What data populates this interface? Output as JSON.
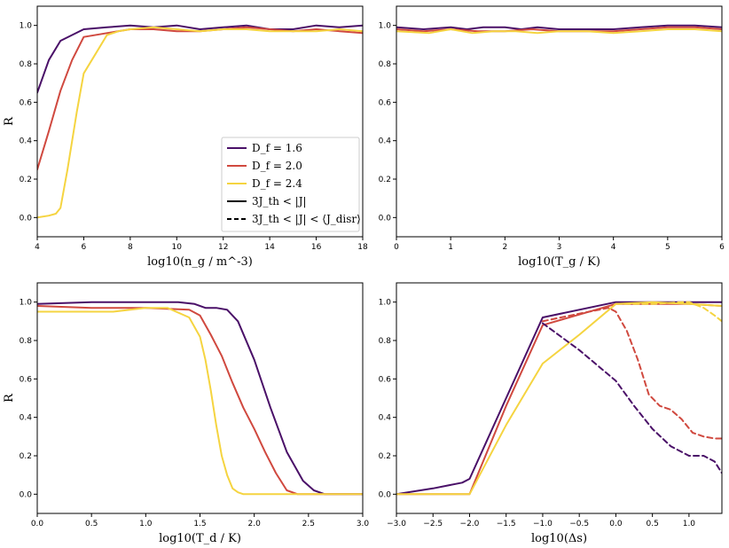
{
  "legend": {
    "entries": [
      {
        "label": "D_f = 1.6",
        "color": "#4a1068",
        "style": "solid"
      },
      {
        "label": "D_f = 2.0",
        "color": "#d0493f",
        "style": "solid"
      },
      {
        "label": "D_f = 2.4",
        "color": "#f5d440",
        "style": "solid"
      },
      {
        "label": "3J_th < |J|",
        "color": "#000000",
        "style": "solid"
      },
      {
        "label": "3J_th < |J| < ⟨J_disr⟩",
        "color": "#000000",
        "style": "dashed"
      }
    ]
  },
  "chart_data": [
    {
      "type": "line",
      "panel": "top-left",
      "xlabel": "log10(n_g / m^-3)",
      "ylabel": "R",
      "xlim": [
        4,
        18
      ],
      "ylim": [
        -0.1,
        1.1
      ],
      "xticks": [
        "4",
        "6",
        "8",
        "10",
        "12",
        "14",
        "16",
        "18"
      ],
      "yticks": [
        "0.0",
        "0.2",
        "0.4",
        "0.6",
        "0.8",
        "1.0"
      ],
      "legend": "lower-right",
      "series": [
        {
          "color": "#4a1068",
          "dash": false,
          "x": [
            4,
            4.5,
            5,
            5.5,
            6,
            7,
            8,
            9,
            10,
            11,
            12,
            13,
            14,
            15,
            16,
            17,
            18
          ],
          "y": [
            0.65,
            0.82,
            0.92,
            0.95,
            0.98,
            0.99,
            1.0,
            0.99,
            1.0,
            0.98,
            0.99,
            1.0,
            0.98,
            0.98,
            1.0,
            0.99,
            1.0
          ]
        },
        {
          "color": "#d0493f",
          "dash": false,
          "x": [
            4,
            4.5,
            5,
            5.5,
            6,
            7,
            8,
            9,
            10,
            11,
            12,
            13,
            14,
            15,
            16,
            17,
            18
          ],
          "y": [
            0.25,
            0.45,
            0.66,
            0.82,
            0.94,
            0.96,
            0.98,
            0.98,
            0.97,
            0.97,
            0.98,
            0.99,
            0.98,
            0.97,
            0.98,
            0.97,
            0.96
          ]
        },
        {
          "color": "#f5d440",
          "dash": false,
          "x": [
            4,
            4.5,
            4.8,
            5,
            5.3,
            5.7,
            6,
            6.5,
            7,
            7.5,
            8,
            9,
            10,
            11,
            12,
            13,
            14,
            15,
            16,
            17,
            18
          ],
          "y": [
            0.0,
            0.01,
            0.02,
            0.05,
            0.25,
            0.55,
            0.75,
            0.85,
            0.95,
            0.97,
            0.98,
            0.99,
            0.98,
            0.97,
            0.98,
            0.98,
            0.97,
            0.97,
            0.97,
            0.98,
            0.97
          ]
        }
      ]
    },
    {
      "type": "line",
      "panel": "top-right",
      "xlabel": "log10(T_g / K)",
      "ylabel": "",
      "xlim": [
        0,
        6
      ],
      "ylim": [
        -0.1,
        1.1
      ],
      "xticks": [
        "0",
        "1",
        "2",
        "3",
        "4",
        "5",
        "6"
      ],
      "yticks": [
        "0.0",
        "0.2",
        "0.4",
        "0.6",
        "0.8",
        "1.0"
      ],
      "series": [
        {
          "color": "#4a1068",
          "dash": false,
          "x": [
            0,
            0.5,
            1,
            1.3,
            1.6,
            2,
            2.3,
            2.6,
            3,
            3.5,
            4,
            4.5,
            5,
            5.5,
            6
          ],
          "y": [
            0.99,
            0.98,
            0.99,
            0.98,
            0.99,
            0.99,
            0.98,
            0.99,
            0.98,
            0.98,
            0.98,
            0.99,
            1.0,
            1.0,
            0.99
          ]
        },
        {
          "color": "#d0493f",
          "dash": false,
          "x": [
            0,
            0.5,
            1,
            1.5,
            2,
            2.5,
            3,
            3.5,
            4,
            4.5,
            5,
            5.5,
            6
          ],
          "y": [
            0.98,
            0.97,
            0.98,
            0.97,
            0.97,
            0.98,
            0.97,
            0.97,
            0.97,
            0.98,
            0.99,
            0.99,
            0.98
          ]
        },
        {
          "color": "#f5d440",
          "dash": false,
          "x": [
            0,
            0.6,
            1,
            1.4,
            1.8,
            2.2,
            2.6,
            3,
            3.5,
            4,
            4.5,
            5,
            5.5,
            6
          ],
          "y": [
            0.97,
            0.96,
            0.98,
            0.96,
            0.97,
            0.97,
            0.96,
            0.97,
            0.97,
            0.96,
            0.97,
            0.98,
            0.98,
            0.97
          ]
        }
      ]
    },
    {
      "type": "line",
      "panel": "bottom-left",
      "xlabel": "log10(T_d / K)",
      "ylabel": "R",
      "xlim": [
        0,
        3
      ],
      "ylim": [
        -0.1,
        1.1
      ],
      "xticks": [
        "0.0",
        "0.5",
        "1.0",
        "1.5",
        "2.0",
        "2.5",
        "3.0"
      ],
      "yticks": [
        "0.0",
        "0.2",
        "0.4",
        "0.6",
        "0.8",
        "1.0"
      ],
      "series": [
        {
          "color": "#4a1068",
          "dash": false,
          "x": [
            0,
            0.5,
            1,
            1.3,
            1.45,
            1.55,
            1.65,
            1.75,
            1.85,
            2,
            2.15,
            2.3,
            2.45,
            2.55,
            2.65,
            2.8,
            3
          ],
          "y": [
            0.99,
            1.0,
            1.0,
            1.0,
            0.99,
            0.97,
            0.97,
            0.96,
            0.9,
            0.7,
            0.45,
            0.22,
            0.07,
            0.02,
            0.0,
            0.0,
            0.0
          ]
        },
        {
          "color": "#d0493f",
          "dash": false,
          "x": [
            0,
            0.5,
            1,
            1.4,
            1.5,
            1.6,
            1.7,
            1.8,
            1.9,
            2,
            2.1,
            2.2,
            2.3,
            2.4,
            2.5,
            3
          ],
          "y": [
            0.98,
            0.97,
            0.97,
            0.96,
            0.93,
            0.83,
            0.72,
            0.58,
            0.45,
            0.34,
            0.22,
            0.11,
            0.02,
            0.0,
            0.0,
            0.0
          ]
        },
        {
          "color": "#f5d440",
          "dash": false,
          "x": [
            0,
            0.7,
            1,
            1.2,
            1.4,
            1.5,
            1.55,
            1.6,
            1.65,
            1.7,
            1.75,
            1.8,
            1.85,
            1.9,
            2,
            3
          ],
          "y": [
            0.95,
            0.95,
            0.97,
            0.97,
            0.92,
            0.82,
            0.7,
            0.54,
            0.36,
            0.2,
            0.1,
            0.03,
            0.01,
            0.0,
            0.0,
            0.0
          ]
        }
      ]
    },
    {
      "type": "line",
      "panel": "bottom-right",
      "xlabel": "log10(Δs)",
      "ylabel": "",
      "xlim": [
        -3.0,
        1.45
      ],
      "ylim": [
        -0.1,
        1.1
      ],
      "xticks": [
        "−3.0",
        "−2.5",
        "−2.0",
        "−1.5",
        "−1.0",
        "−0.5",
        "0.0",
        "0.5",
        "1.0"
      ],
      "xtick_values": [
        -3.0,
        -2.5,
        -2.0,
        -1.5,
        -1.0,
        -0.5,
        0.0,
        0.5,
        1.0
      ],
      "yticks": [
        "0.0",
        "0.2",
        "0.4",
        "0.6",
        "0.8",
        "1.0"
      ],
      "series": [
        {
          "color": "#4a1068",
          "dash": false,
          "x": [
            -3.0,
            -2.5,
            -2.1,
            -2.0,
            -1.5,
            -1.0,
            0.0,
            0.5,
            1.0,
            1.45
          ],
          "y": [
            0.0,
            0.03,
            0.06,
            0.08,
            0.5,
            0.92,
            1.0,
            1.0,
            1.0,
            1.0
          ]
        },
        {
          "color": "#d0493f",
          "dash": false,
          "x": [
            -3.0,
            -2.0,
            -1.5,
            -1.0,
            0.0,
            0.5,
            1.0,
            1.45
          ],
          "y": [
            0.0,
            0.0,
            0.46,
            0.88,
            0.99,
            0.99,
            0.99,
            0.98
          ]
        },
        {
          "color": "#f5d440",
          "dash": false,
          "x": [
            -3.0,
            -2.0,
            -1.5,
            -1.0,
            -0.5,
            0.0,
            0.5,
            1.0,
            1.45
          ],
          "y": [
            0.0,
            0.0,
            0.36,
            0.68,
            0.83,
            0.99,
            1.0,
            0.99,
            0.98
          ]
        },
        {
          "color": "#4a1068",
          "dash": true,
          "x": [
            -1.0,
            -0.5,
            0.0,
            0.25,
            0.5,
            0.75,
            1.0,
            1.2,
            1.35,
            1.45
          ],
          "y": [
            0.89,
            0.75,
            0.59,
            0.46,
            0.34,
            0.25,
            0.2,
            0.2,
            0.17,
            0.11
          ]
        },
        {
          "color": "#d0493f",
          "dash": true,
          "x": [
            -1.0,
            -0.5,
            -0.1,
            0.0,
            0.15,
            0.3,
            0.45,
            0.6,
            0.75,
            0.9,
            1.05,
            1.2,
            1.35,
            1.45
          ],
          "y": [
            0.9,
            0.94,
            0.97,
            0.95,
            0.85,
            0.7,
            0.52,
            0.46,
            0.44,
            0.39,
            0.32,
            0.3,
            0.29,
            0.29
          ]
        },
        {
          "color": "#f5d440",
          "dash": true,
          "x": [
            0.0,
            0.5,
            0.9,
            1.0,
            1.2,
            1.35,
            1.45
          ],
          "y": [
            0.99,
            0.99,
            1.0,
            1.0,
            0.97,
            0.93,
            0.9
          ]
        }
      ]
    }
  ]
}
